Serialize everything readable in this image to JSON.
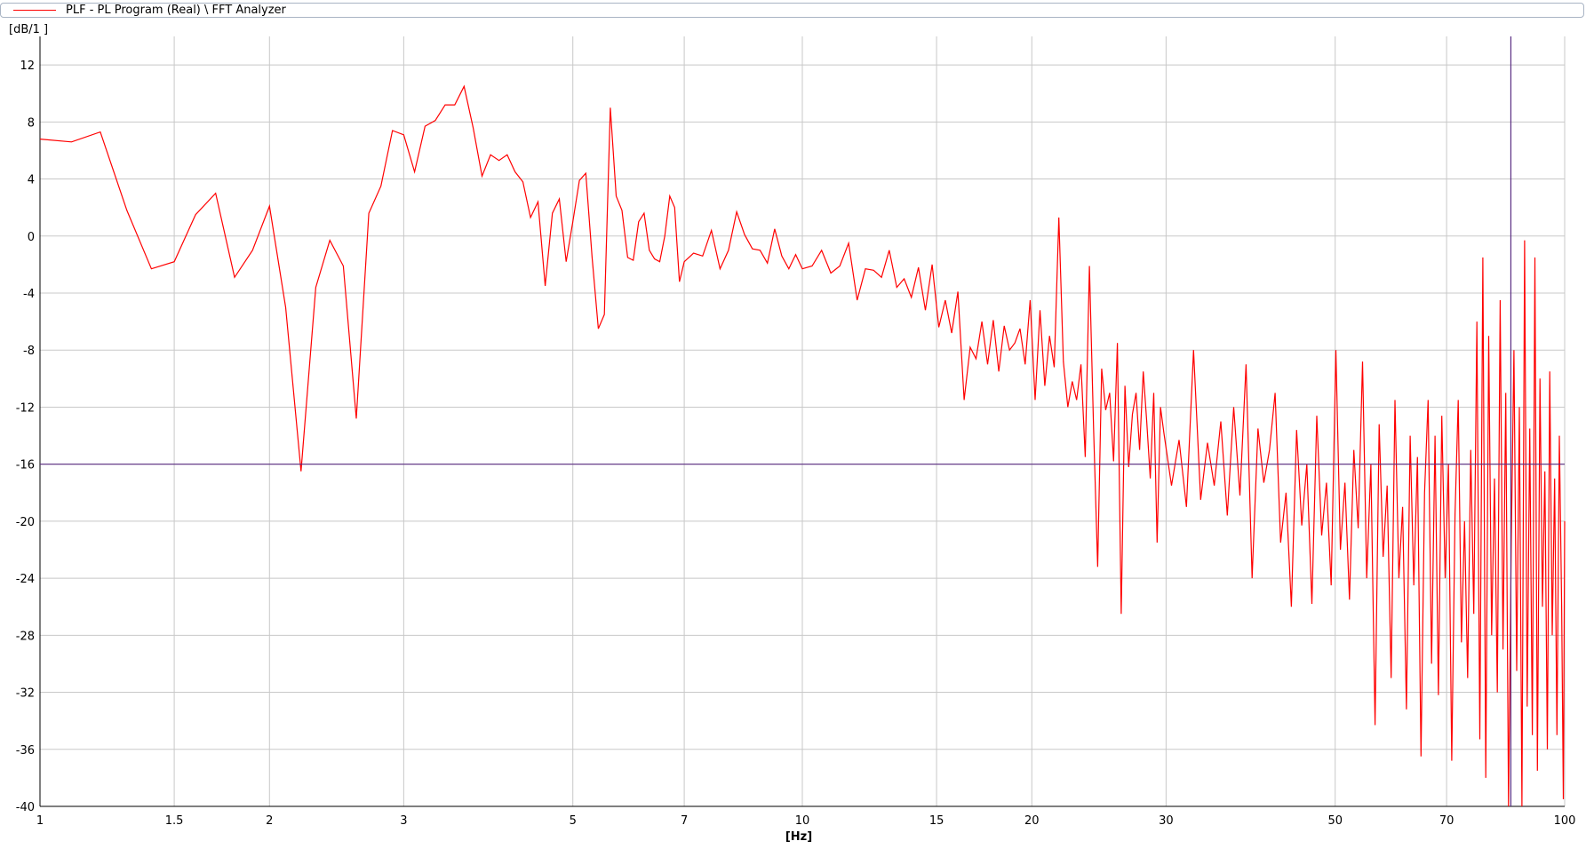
{
  "legend": {
    "entry": "PLF - PL Program (Real) \\ FFT Analyzer",
    "color": "#ff0000"
  },
  "chart_data": {
    "type": "line",
    "x_scale": "log",
    "xlim": [
      1,
      100
    ],
    "ylim": [
      -40,
      14
    ],
    "x_ticks": [
      1,
      1.5,
      2,
      3,
      5,
      7,
      10,
      15,
      20,
      30,
      50,
      70,
      100
    ],
    "x_tick_labels": [
      "1",
      "1.5",
      "2",
      "3",
      "5",
      "7",
      "10",
      "15",
      "20",
      "30",
      "50",
      "70",
      "100"
    ],
    "y_ticks": [
      12,
      8,
      4,
      0,
      -4,
      -8,
      -12,
      -16,
      -20,
      -24,
      -28,
      -32,
      -36,
      -40
    ],
    "y_tick_labels": [
      "12",
      "8",
      "4",
      "0",
      "-4",
      "-8",
      "-12",
      "-16",
      "-20",
      "-24",
      "-28",
      "-32",
      "-36",
      "-40"
    ],
    "xlabel": "[Hz]",
    "ylabel": "[dB/1  ]",
    "grid": true,
    "cursor": {
      "x": 85,
      "y": -16,
      "color": "#5a2d82"
    },
    "series": [
      {
        "color": "#ff0000",
        "points": [
          [
            1.0,
            6.8
          ],
          [
            1.1,
            6.6
          ],
          [
            1.2,
            7.3
          ],
          [
            1.3,
            1.8
          ],
          [
            1.4,
            -2.3
          ],
          [
            1.5,
            -1.8
          ],
          [
            1.6,
            1.5
          ],
          [
            1.7,
            3.0
          ],
          [
            1.8,
            -2.9
          ],
          [
            1.9,
            -1.0
          ],
          [
            2.0,
            2.1
          ],
          [
            2.1,
            -5.0
          ],
          [
            2.2,
            -16.5
          ],
          [
            2.3,
            -3.6
          ],
          [
            2.4,
            -0.3
          ],
          [
            2.5,
            -2.1
          ],
          [
            2.6,
            -12.8
          ],
          [
            2.7,
            1.6
          ],
          [
            2.8,
            3.5
          ],
          [
            2.9,
            7.4
          ],
          [
            3.0,
            7.1
          ],
          [
            3.1,
            4.5
          ],
          [
            3.2,
            7.7
          ],
          [
            3.3,
            8.1
          ],
          [
            3.4,
            9.2
          ],
          [
            3.5,
            9.2
          ],
          [
            3.6,
            10.5
          ],
          [
            3.7,
            7.6
          ],
          [
            3.8,
            4.2
          ],
          [
            3.9,
            5.7
          ],
          [
            4.0,
            5.3
          ],
          [
            4.1,
            5.7
          ],
          [
            4.2,
            4.5
          ],
          [
            4.3,
            3.8
          ],
          [
            4.4,
            1.3
          ],
          [
            4.5,
            2.4
          ],
          [
            4.6,
            -3.5
          ],
          [
            4.7,
            1.6
          ],
          [
            4.8,
            2.6
          ],
          [
            4.9,
            -1.8
          ],
          [
            5.0,
            1.0
          ],
          [
            5.1,
            3.9
          ],
          [
            5.2,
            4.4
          ],
          [
            5.3,
            -1.5
          ],
          [
            5.4,
            -6.5
          ],
          [
            5.5,
            -5.5
          ],
          [
            5.6,
            9.0
          ],
          [
            5.7,
            2.8
          ],
          [
            5.8,
            1.8
          ],
          [
            5.9,
            -1.5
          ],
          [
            6.0,
            -1.7
          ],
          [
            6.1,
            1.0
          ],
          [
            6.2,
            1.6
          ],
          [
            6.3,
            -1.0
          ],
          [
            6.4,
            -1.6
          ],
          [
            6.5,
            -1.8
          ],
          [
            6.6,
            0.0
          ],
          [
            6.7,
            2.8
          ],
          [
            6.8,
            2.0
          ],
          [
            6.9,
            -3.2
          ],
          [
            7.0,
            -1.8
          ],
          [
            7.2,
            -1.2
          ],
          [
            7.4,
            -1.4
          ],
          [
            7.6,
            0.4
          ],
          [
            7.8,
            -2.3
          ],
          [
            8.0,
            -1.0
          ],
          [
            8.2,
            1.7
          ],
          [
            8.4,
            0.1
          ],
          [
            8.6,
            -0.9
          ],
          [
            8.8,
            -1.0
          ],
          [
            9.0,
            -1.9
          ],
          [
            9.2,
            0.5
          ],
          [
            9.4,
            -1.4
          ],
          [
            9.6,
            -2.3
          ],
          [
            9.8,
            -1.3
          ],
          [
            10.0,
            -2.3
          ],
          [
            10.3,
            -2.1
          ],
          [
            10.6,
            -1.0
          ],
          [
            10.9,
            -2.6
          ],
          [
            11.2,
            -2.1
          ],
          [
            11.5,
            -0.5
          ],
          [
            11.8,
            -4.5
          ],
          [
            12.1,
            -2.3
          ],
          [
            12.4,
            -2.4
          ],
          [
            12.7,
            -2.9
          ],
          [
            13.0,
            -1.0
          ],
          [
            13.3,
            -3.6
          ],
          [
            13.6,
            -3.0
          ],
          [
            13.9,
            -4.3
          ],
          [
            14.2,
            -2.2
          ],
          [
            14.5,
            -5.2
          ],
          [
            14.8,
            -2.0
          ],
          [
            15.1,
            -6.4
          ],
          [
            15.4,
            -4.5
          ],
          [
            15.7,
            -6.8
          ],
          [
            16.0,
            -3.9
          ],
          [
            16.3,
            -11.5
          ],
          [
            16.6,
            -7.8
          ],
          [
            16.9,
            -8.6
          ],
          [
            17.2,
            -6.0
          ],
          [
            17.5,
            -9.0
          ],
          [
            17.8,
            -5.9
          ],
          [
            18.1,
            -9.5
          ],
          [
            18.4,
            -6.3
          ],
          [
            18.7,
            -8.0
          ],
          [
            19.0,
            -7.5
          ],
          [
            19.3,
            -6.5
          ],
          [
            19.6,
            -9.0
          ],
          [
            19.9,
            -4.5
          ],
          [
            20.2,
            -11.5
          ],
          [
            20.5,
            -5.2
          ],
          [
            20.8,
            -10.5
          ],
          [
            21.1,
            -7.0
          ],
          [
            21.4,
            -9.2
          ],
          [
            21.7,
            1.3
          ],
          [
            22.0,
            -8.8
          ],
          [
            22.3,
            -12.0
          ],
          [
            22.6,
            -10.2
          ],
          [
            22.9,
            -11.5
          ],
          [
            23.2,
            -9.0
          ],
          [
            23.5,
            -15.5
          ],
          [
            23.8,
            -2.1
          ],
          [
            24.1,
            -13.5
          ],
          [
            24.4,
            -23.2
          ],
          [
            24.7,
            -9.3
          ],
          [
            25.0,
            -12.2
          ],
          [
            25.3,
            -11.0
          ],
          [
            25.6,
            -15.8
          ],
          [
            25.9,
            -7.5
          ],
          [
            26.2,
            -26.5
          ],
          [
            26.5,
            -10.5
          ],
          [
            26.8,
            -16.2
          ],
          [
            27.1,
            -12.5
          ],
          [
            27.4,
            -11.0
          ],
          [
            27.7,
            -15.0
          ],
          [
            28.0,
            -9.5
          ],
          [
            28.3,
            -13.0
          ],
          [
            28.6,
            -17.0
          ],
          [
            28.9,
            -11.0
          ],
          [
            29.2,
            -21.5
          ],
          [
            29.5,
            -12.0
          ],
          [
            29.8,
            -13.8
          ],
          [
            30.5,
            -17.5
          ],
          [
            31.2,
            -14.3
          ],
          [
            31.9,
            -19.0
          ],
          [
            32.6,
            -8.0
          ],
          [
            33.3,
            -18.5
          ],
          [
            34.0,
            -14.5
          ],
          [
            34.7,
            -17.5
          ],
          [
            35.4,
            -13.0
          ],
          [
            36.1,
            -19.6
          ],
          [
            36.8,
            -12.0
          ],
          [
            37.5,
            -18.2
          ],
          [
            38.2,
            -9.0
          ],
          [
            38.9,
            -24.0
          ],
          [
            39.6,
            -13.5
          ],
          [
            40.3,
            -17.3
          ],
          [
            41.0,
            -15.0
          ],
          [
            41.7,
            -11.0
          ],
          [
            42.4,
            -21.5
          ],
          [
            43.1,
            -18.0
          ],
          [
            43.8,
            -26.0
          ],
          [
            44.5,
            -13.6
          ],
          [
            45.2,
            -20.3
          ],
          [
            45.9,
            -16.0
          ],
          [
            46.6,
            -25.8
          ],
          [
            47.3,
            -12.6
          ],
          [
            48.0,
            -21.0
          ],
          [
            48.7,
            -17.3
          ],
          [
            49.4,
            -24.5
          ],
          [
            50.1,
            -8.0
          ],
          [
            50.8,
            -22.0
          ],
          [
            51.5,
            -17.3
          ],
          [
            52.2,
            -25.5
          ],
          [
            52.9,
            -15.0
          ],
          [
            53.6,
            -20.5
          ],
          [
            54.3,
            -8.8
          ],
          [
            55.0,
            -24.0
          ],
          [
            55.7,
            -16.0
          ],
          [
            56.4,
            -34.3
          ],
          [
            57.1,
            -13.2
          ],
          [
            57.8,
            -22.5
          ],
          [
            58.5,
            -17.5
          ],
          [
            59.2,
            -31.0
          ],
          [
            59.9,
            -11.5
          ],
          [
            60.6,
            -24.0
          ],
          [
            61.3,
            -19.0
          ],
          [
            62.0,
            -33.2
          ],
          [
            62.7,
            -14.0
          ],
          [
            63.4,
            -24.5
          ],
          [
            64.1,
            -15.5
          ],
          [
            64.8,
            -36.5
          ],
          [
            65.5,
            -18.0
          ],
          [
            66.2,
            -11.5
          ],
          [
            66.9,
            -30.0
          ],
          [
            67.6,
            -14.0
          ],
          [
            68.3,
            -32.2
          ],
          [
            69.0,
            -12.6
          ],
          [
            69.7,
            -24.0
          ],
          [
            70.4,
            -16.0
          ],
          [
            71.1,
            -36.8
          ],
          [
            71.8,
            -19.5
          ],
          [
            72.5,
            -11.5
          ],
          [
            73.2,
            -28.5
          ],
          [
            73.9,
            -20.0
          ],
          [
            74.6,
            -31.0
          ],
          [
            75.3,
            -15.0
          ],
          [
            76.0,
            -26.5
          ],
          [
            76.7,
            -6.0
          ],
          [
            77.4,
            -35.3
          ],
          [
            78.1,
            -1.5
          ],
          [
            78.8,
            -38.0
          ],
          [
            79.5,
            -7.0
          ],
          [
            80.2,
            -28.0
          ],
          [
            80.9,
            -17.0
          ],
          [
            81.6,
            -32.0
          ],
          [
            82.3,
            -4.5
          ],
          [
            83.0,
            -29.0
          ],
          [
            83.7,
            -11.0
          ],
          [
            84.4,
            -40.5
          ],
          [
            85.1,
            -21.5
          ],
          [
            85.8,
            -8.0
          ],
          [
            86.5,
            -30.5
          ],
          [
            87.2,
            -12.0
          ],
          [
            87.9,
            -40.5
          ],
          [
            88.6,
            -0.3
          ],
          [
            89.3,
            -33.0
          ],
          [
            90.0,
            -13.5
          ],
          [
            90.7,
            -35.0
          ],
          [
            91.4,
            -1.5
          ],
          [
            92.1,
            -37.5
          ],
          [
            92.8,
            -10.0
          ],
          [
            93.5,
            -26.0
          ],
          [
            94.2,
            -16.5
          ],
          [
            94.9,
            -36.0
          ],
          [
            95.6,
            -9.5
          ],
          [
            96.3,
            -28.0
          ],
          [
            97.0,
            -17.0
          ],
          [
            97.7,
            -35.0
          ],
          [
            98.4,
            -14.0
          ],
          [
            99.1,
            -26.0
          ],
          [
            99.6,
            -39.5
          ],
          [
            100.0,
            -20.0
          ]
        ]
      }
    ]
  }
}
